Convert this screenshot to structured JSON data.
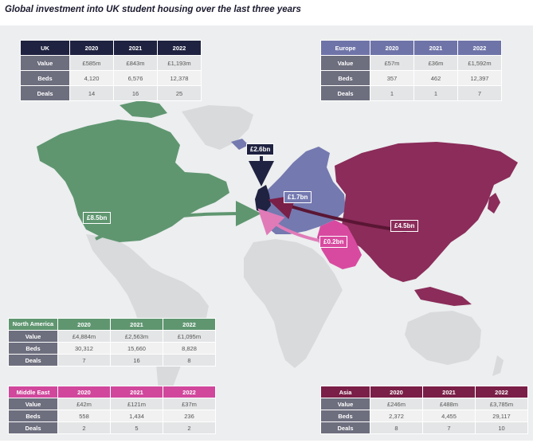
{
  "title": "Global investment into UK student housing over the last three years",
  "years": [
    "2020",
    "2021",
    "2022"
  ],
  "row_labels": {
    "value": "Value",
    "beds": "Beds",
    "deals": "Deals"
  },
  "regions": {
    "uk": {
      "name": "UK",
      "color": "#1f2240",
      "value": [
        "£585m",
        "£843m",
        "£1,193m"
      ],
      "beds": [
        "4,120",
        "6,576",
        "12,378"
      ],
      "deals": [
        "14",
        "16",
        "25"
      ]
    },
    "europe": {
      "name": "Europe",
      "color": "#6f74a8",
      "value": [
        "£57m",
        "£36m",
        "£1,592m"
      ],
      "beds": [
        "357",
        "462",
        "12,397"
      ],
      "deals": [
        "1",
        "1",
        "7"
      ]
    },
    "north_america": {
      "name": "North America",
      "color": "#5f9670",
      "value": [
        "£4,884m",
        "£2,563m",
        "£1,095m"
      ],
      "beds": [
        "30,312",
        "15,660",
        "8,828"
      ],
      "deals": [
        "7",
        "16",
        "8"
      ]
    },
    "middle_east": {
      "name": "Middle East",
      "color": "#d0479c",
      "value": [
        "£42m",
        "£121m",
        "£37m"
      ],
      "beds": [
        "558",
        "1,434",
        "236"
      ],
      "deals": [
        "2",
        "5",
        "2"
      ]
    },
    "asia": {
      "name": "Asia",
      "color": "#7a1f47",
      "value": [
        "£246m",
        "£488m",
        "£3,785m"
      ],
      "beds": [
        "2,372",
        "4,455",
        "29,117"
      ],
      "deals": [
        "8",
        "7",
        "10"
      ]
    }
  },
  "flow_labels": {
    "uk": "£2.6bn",
    "europe": "£1.7bn",
    "north_america": "£8.5bn",
    "middle_east": "£0.2bn",
    "asia": "£4.5bn"
  }
}
